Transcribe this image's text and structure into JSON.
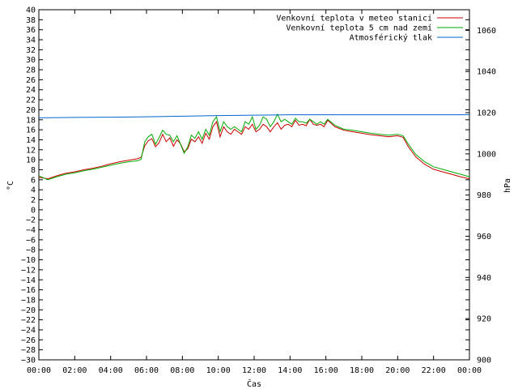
{
  "chart_data": {
    "type": "line",
    "title": "",
    "xlabel": "Čas",
    "ylabel": "°C",
    "y2label": "hPa",
    "xlim": [
      0,
      24
    ],
    "ylim": [
      -30,
      40
    ],
    "y2lim": [
      900,
      1070
    ],
    "x_tick_labels": [
      "00:00",
      "02:00",
      "04:00",
      "06:00",
      "08:00",
      "10:00",
      "12:00",
      "14:00",
      "16:00",
      "18:00",
      "20:00",
      "22:00",
      "00:00"
    ],
    "y_ticks": [
      40,
      38,
      36,
      34,
      32,
      30,
      28,
      26,
      24,
      22,
      20,
      18,
      16,
      14,
      12,
      10,
      8,
      6,
      4,
      2,
      0,
      -2,
      -4,
      -6,
      -8,
      -10,
      -12,
      -14,
      -16,
      -18,
      -20,
      -22,
      -24,
      -26,
      -28,
      -30
    ],
    "y2_ticks": [
      1060,
      1040,
      1020,
      1000,
      980,
      960,
      940,
      920,
      900
    ],
    "legend_position": "top-right",
    "grid": false,
    "series": [
      {
        "name": "Venkovní teplota v meteo stanici",
        "axis": "left",
        "color": "#cc0000",
        "x": [
          0,
          0.5,
          1,
          1.5,
          2,
          2.5,
          3,
          3.5,
          4,
          4.5,
          5,
          5.5,
          5.7,
          5.9,
          6.1,
          6.3,
          6.5,
          6.7,
          6.9,
          7.1,
          7.3,
          7.5,
          7.7,
          7.9,
          8.1,
          8.3,
          8.5,
          8.7,
          8.9,
          9.1,
          9.3,
          9.5,
          9.7,
          9.9,
          10.1,
          10.3,
          10.5,
          10.7,
          10.9,
          11.1,
          11.3,
          11.5,
          11.7,
          11.9,
          12.1,
          12.3,
          12.5,
          12.7,
          12.9,
          13.1,
          13.3,
          13.5,
          13.7,
          13.9,
          14.1,
          14.3,
          14.5,
          14.7,
          14.9,
          15.1,
          15.3,
          15.5,
          15.7,
          15.9,
          16.1,
          16.5,
          17,
          17.5,
          18,
          18.5,
          19,
          19.5,
          20,
          20.3,
          20.6,
          21,
          21.5,
          22,
          22.5,
          23,
          23.5,
          24
        ],
        "values": [
          6.5,
          6.2,
          6.8,
          7.3,
          7.6,
          8.0,
          8.3,
          8.7,
          9.2,
          9.6,
          9.9,
          10.2,
          10.5,
          12.8,
          13.8,
          14.2,
          12.6,
          13.4,
          15.1,
          13.6,
          14.4,
          12.7,
          14.0,
          13.2,
          11.6,
          12.2,
          14.1,
          13.6,
          14.6,
          13.3,
          15.3,
          14.1,
          16.6,
          17.6,
          14.6,
          16.6,
          15.6,
          15.1,
          16.1,
          15.6,
          15.1,
          16.6,
          16.1,
          17.1,
          15.6,
          16.1,
          17.1,
          16.6,
          15.6,
          16.6,
          17.4,
          16.1,
          16.9,
          17.1,
          16.6,
          17.9,
          16.9,
          17.1,
          16.8,
          18.1,
          17.1,
          16.9,
          17.1,
          16.6,
          17.9,
          16.6,
          15.9,
          15.6,
          15.3,
          15.0,
          14.8,
          14.6,
          14.8,
          14.5,
          12.6,
          10.6,
          9.1,
          8.1,
          7.6,
          7.1,
          6.6,
          6.2
        ]
      },
      {
        "name": "Venkovní teplota 5 cm nad zemí",
        "axis": "left",
        "color": "#00aa00",
        "x": [
          0,
          0.5,
          1,
          1.5,
          2,
          2.5,
          3,
          3.5,
          4,
          4.5,
          5,
          5.5,
          5.7,
          5.9,
          6.1,
          6.3,
          6.5,
          6.7,
          6.9,
          7.1,
          7.3,
          7.5,
          7.7,
          7.9,
          8.1,
          8.3,
          8.5,
          8.7,
          8.9,
          9.1,
          9.3,
          9.5,
          9.7,
          9.9,
          10.1,
          10.3,
          10.5,
          10.7,
          10.9,
          11.1,
          11.3,
          11.5,
          11.7,
          11.9,
          12.1,
          12.3,
          12.5,
          12.7,
          12.9,
          13.1,
          13.3,
          13.5,
          13.7,
          13.9,
          14.1,
          14.3,
          14.5,
          14.7,
          14.9,
          15.1,
          15.3,
          15.5,
          15.7,
          15.9,
          16.1,
          16.5,
          17,
          17.5,
          18,
          18.5,
          19,
          19.5,
          20,
          20.3,
          20.6,
          21,
          21.5,
          22,
          22.5,
          23,
          23.5,
          24
        ],
        "values": [
          6.8,
          6.0,
          6.6,
          7.1,
          7.4,
          7.8,
          8.1,
          8.5,
          8.9,
          9.3,
          9.6,
          9.8,
          10.1,
          13.6,
          14.6,
          15.1,
          13.1,
          14.4,
          15.9,
          15.1,
          14.9,
          13.6,
          14.8,
          13.1,
          11.3,
          12.6,
          14.9,
          14.3,
          15.6,
          14.1,
          16.1,
          14.9,
          17.6,
          18.6,
          15.6,
          17.6,
          16.6,
          16.1,
          16.6,
          16.1,
          15.6,
          17.6,
          17.1,
          18.6,
          16.1,
          16.9,
          18.6,
          18.1,
          16.6,
          17.6,
          19.1,
          17.6,
          18.1,
          17.6,
          17.1,
          18.3,
          17.6,
          17.6,
          17.3,
          18.1,
          17.6,
          17.1,
          17.6,
          17.1,
          18.1,
          16.9,
          16.1,
          15.9,
          15.6,
          15.3,
          15.1,
          14.9,
          15.1,
          14.8,
          13.1,
          11.1,
          9.6,
          8.6,
          8.1,
          7.6,
          7.1,
          6.6
        ]
      },
      {
        "name": "Atmosférický tlak",
        "axis": "right",
        "color": "#0066cc",
        "x": [
          0,
          2,
          4,
          6,
          8,
          10,
          12,
          14,
          16,
          18,
          20,
          22,
          24
        ],
        "values": [
          1017.5,
          1017.7,
          1017.8,
          1018.0,
          1018.3,
          1018.6,
          1018.8,
          1019.0,
          1019.0,
          1019.0,
          1019.0,
          1019.0,
          1019.0
        ]
      }
    ]
  }
}
